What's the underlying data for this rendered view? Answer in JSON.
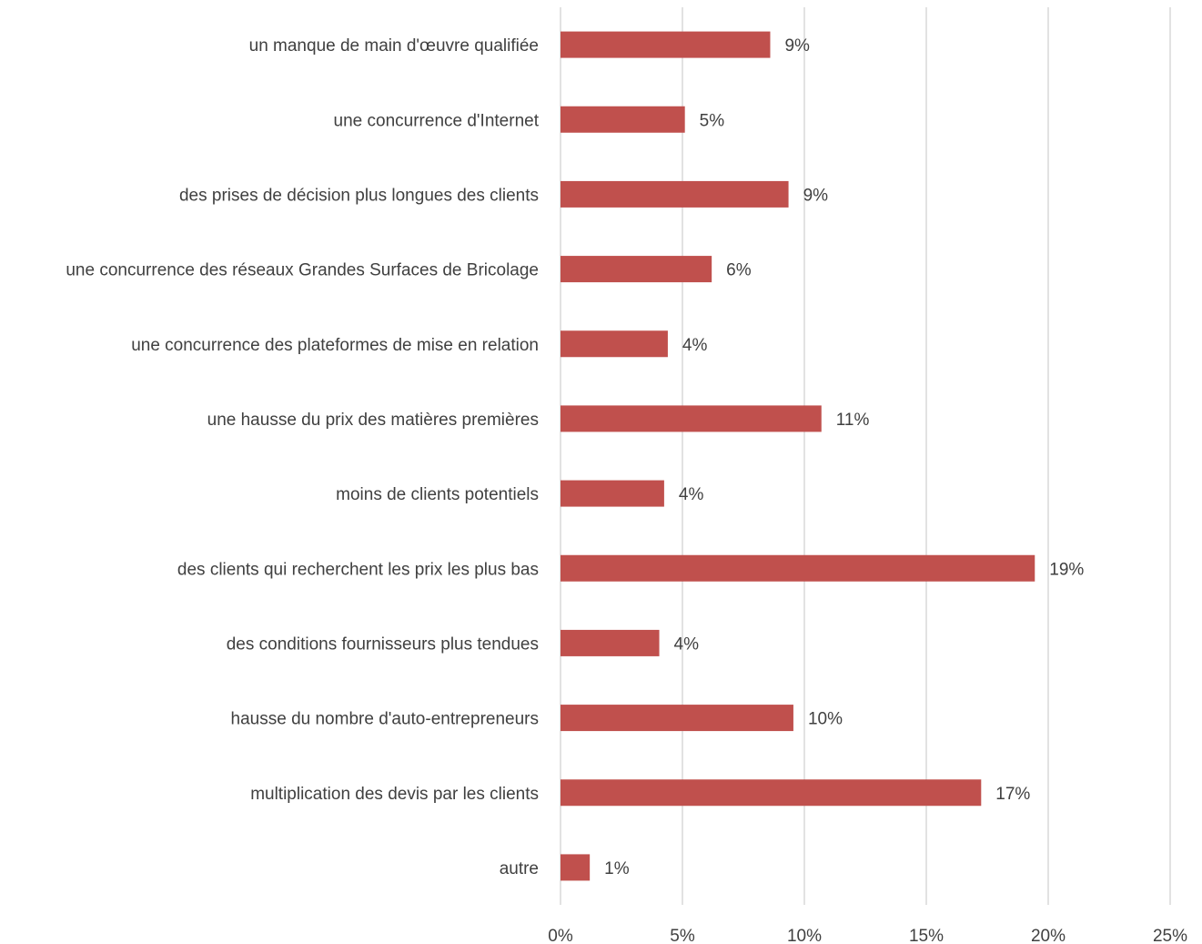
{
  "chart_data": {
    "type": "bar",
    "orientation": "horizontal",
    "title": "",
    "xlabel": "",
    "ylabel": "",
    "xlim": [
      0,
      25
    ],
    "x_ticks": [
      0,
      5,
      10,
      15,
      20,
      25
    ],
    "x_tick_labels": [
      "0%",
      "5%",
      "10%",
      "15%",
      "20%",
      "25%"
    ],
    "grid": "vertical",
    "legend": "none",
    "bar_color": "#c0504d",
    "categories": [
      "un manque de main d'œuvre qualifiée",
      "une concurrence d'Internet",
      "des prises de décision plus longues des clients",
      "une concurrence des réseaux Grandes Surfaces de Bricolage",
      "une concurrence des plateformes de mise en relation",
      "une hausse du prix des matières premières",
      "moins de clients potentiels",
      "des clients qui recherchent les prix les plus bas",
      "des conditions fournisseurs plus tendues",
      "hausse du nombre d'auto-entrepreneurs",
      "multiplication des devis par les clients",
      "autre"
    ],
    "values": [
      8.6,
      5.1,
      9.35,
      6.2,
      4.4,
      10.7,
      4.25,
      19.45,
      4.05,
      9.55,
      17.25,
      1.2
    ],
    "value_labels": [
      "9%",
      "5%",
      "9%",
      "6%",
      "4%",
      "11%",
      "4%",
      "19%",
      "4%",
      "10%",
      "17%",
      "1%"
    ]
  }
}
